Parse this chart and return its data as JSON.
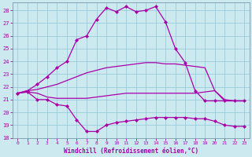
{
  "background_color": "#cce9f0",
  "grid_color": "#99ccdd",
  "line_color": "#aa00aa",
  "xlabel": "Windchill (Refroidissement éolien,°C)",
  "xlim": [
    -0.5,
    23.5
  ],
  "ylim": [
    18,
    28.6
  ],
  "yticks": [
    18,
    19,
    20,
    21,
    22,
    23,
    24,
    25,
    26,
    27,
    28
  ],
  "xticks": [
    0,
    1,
    2,
    3,
    4,
    5,
    6,
    7,
    8,
    9,
    10,
    11,
    12,
    13,
    14,
    15,
    16,
    17,
    18,
    19,
    20,
    21,
    22,
    23
  ],
  "curve_top_x": [
    0,
    1,
    2,
    3,
    4,
    5,
    6,
    7,
    8,
    9,
    10,
    11,
    12,
    13,
    14,
    15,
    16,
    17,
    18,
    19,
    20,
    21,
    22,
    23
  ],
  "curve_top_y": [
    21.5,
    21.7,
    22.2,
    22.8,
    23.5,
    24.0,
    25.7,
    26.0,
    27.3,
    28.2,
    27.9,
    28.3,
    27.9,
    28.0,
    28.3,
    27.1,
    25.0,
    23.9,
    21.7,
    20.9,
    20.9,
    20.9,
    20.9,
    20.9
  ],
  "curve_mid1_x": [
    0,
    1,
    2,
    3,
    4,
    5,
    6,
    7,
    8,
    9,
    10,
    11,
    12,
    13,
    14,
    15,
    16,
    17,
    18,
    19,
    20,
    21,
    22,
    23
  ],
  "curve_mid1_y": [
    21.5,
    21.7,
    21.8,
    22.0,
    22.2,
    22.5,
    22.8,
    23.1,
    23.3,
    23.5,
    23.6,
    23.7,
    23.8,
    23.9,
    23.9,
    23.8,
    23.8,
    23.7,
    23.6,
    23.5,
    21.7,
    20.9,
    20.9,
    20.9
  ],
  "curve_mid2_x": [
    0,
    1,
    2,
    3,
    4,
    5,
    6,
    7,
    8,
    9,
    10,
    11,
    12,
    13,
    14,
    15,
    16,
    17,
    18,
    19,
    20,
    21,
    22,
    23
  ],
  "curve_mid2_y": [
    21.5,
    21.6,
    21.5,
    21.2,
    21.1,
    21.1,
    21.1,
    21.1,
    21.2,
    21.3,
    21.4,
    21.5,
    21.5,
    21.5,
    21.5,
    21.5,
    21.5,
    21.5,
    21.5,
    21.6,
    21.7,
    21.0,
    20.9,
    20.9
  ],
  "curve_bot_x": [
    0,
    1,
    2,
    3,
    4,
    5,
    6,
    7,
    8,
    9,
    10,
    11,
    12,
    13,
    14,
    15,
    16,
    17,
    18,
    19,
    20,
    21,
    22,
    23
  ],
  "curve_bot_y": [
    21.5,
    21.6,
    21.0,
    21.0,
    20.6,
    20.5,
    19.4,
    18.5,
    18.5,
    19.0,
    19.2,
    19.3,
    19.4,
    19.5,
    19.6,
    19.6,
    19.6,
    19.6,
    19.5,
    19.5,
    19.3,
    19.0,
    18.9,
    18.9
  ]
}
